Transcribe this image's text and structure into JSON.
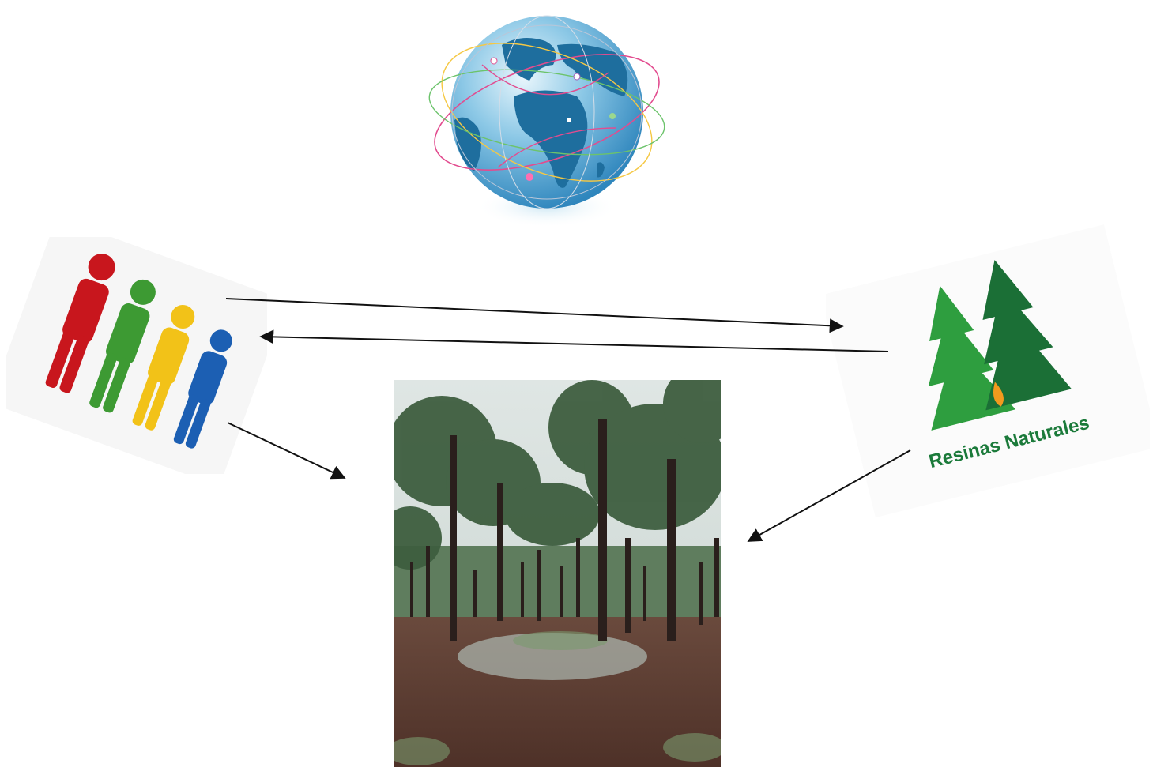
{
  "diagram": {
    "nodes": [
      {
        "id": "globe",
        "icon": "globe-network-icon"
      },
      {
        "id": "people",
        "icon": "people-group-icon",
        "figure_colors": [
          "#c8161d",
          "#3d9a33",
          "#f2c218",
          "#1c5fb3"
        ]
      },
      {
        "id": "resinas",
        "icon": "pine-trees-logo",
        "logo_text": "Resinas Naturales",
        "brand_color": "#1b7a3a",
        "drop_color": "#f39a1e"
      },
      {
        "id": "forest",
        "icon": "pine-forest-photo"
      }
    ],
    "edges": [
      {
        "from": "people",
        "to": "resinas"
      },
      {
        "from": "resinas",
        "to": "people"
      },
      {
        "from": "people",
        "to": "forest"
      },
      {
        "from": "resinas",
        "to": "forest"
      }
    ]
  }
}
